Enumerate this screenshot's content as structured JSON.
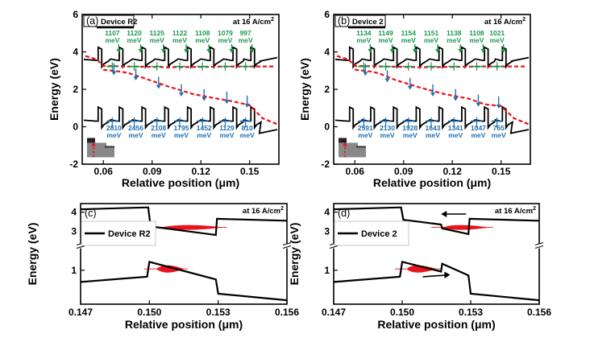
{
  "chart_data": [
    {
      "panel_label": "(a)",
      "type": "line",
      "legend": "Device R2",
      "condition": "at 16 A/cm",
      "condition_sup": "2",
      "xlabel": "Relative position (μm)",
      "ylabel": "Energy (eV)",
      "xlim": [
        0.047,
        0.168
      ],
      "ylim": [
        -2,
        6
      ],
      "xticks": [
        "0.06",
        "0.09",
        "0.12",
        "0.15"
      ],
      "yticks": [
        "-2",
        "0",
        "2",
        "4",
        "6"
      ],
      "barriers_x": [
        0.058,
        0.071,
        0.085,
        0.099,
        0.113,
        0.127,
        0.141,
        0.152
      ],
      "cb_edge": 3.6,
      "cb_barrier": 4.25,
      "vb_edge": 0.35,
      "vb_barrier": 1.05,
      "electron_quasi_fermi": [
        {
          "x": 0.049,
          "y": 3.78
        },
        {
          "x": 0.056,
          "y": 3.6
        },
        {
          "x": 0.06,
          "y": 3.25
        },
        {
          "x": 0.075,
          "y": 3.22
        },
        {
          "x": 0.09,
          "y": 3.2
        },
        {
          "x": 0.1,
          "y": 3.18
        },
        {
          "x": 0.12,
          "y": 3.2
        },
        {
          "x": 0.14,
          "y": 3.22
        },
        {
          "x": 0.165,
          "y": 3.22
        }
      ],
      "hole_quasi_fermi": [
        {
          "x": 0.06,
          "y": 3.05
        },
        {
          "x": 0.07,
          "y": 2.95
        },
        {
          "x": 0.075,
          "y": 2.88
        },
        {
          "x": 0.085,
          "y": 2.6
        },
        {
          "x": 0.1,
          "y": 2.15
        },
        {
          "x": 0.115,
          "y": 1.75
        },
        {
          "x": 0.13,
          "y": 1.5
        },
        {
          "x": 0.14,
          "y": 1.35
        },
        {
          "x": 0.15,
          "y": 1.15
        },
        {
          "x": 0.158,
          "y": 0.45
        },
        {
          "x": 0.168,
          "y": 0.1
        }
      ],
      "electron_annotations": [
        "1107",
        "1120",
        "1125",
        "1122",
        "1108",
        "1079",
        "997"
      ],
      "hole_annotations": [
        "2810",
        "2456",
        "2108",
        "1795",
        "1452",
        "1129",
        "810"
      ],
      "unit": "meV"
    },
    {
      "panel_label": "(b)",
      "type": "line",
      "legend": "Device 2",
      "condition": "at 16 A/cm",
      "condition_sup": "2",
      "xlabel": "Relative position (μm)",
      "ylabel": "Energy (eV)",
      "xlim": [
        0.047,
        0.168
      ],
      "ylim": [
        -2,
        6
      ],
      "xticks": [
        "0.06",
        "0.09",
        "0.12",
        "0.15"
      ],
      "yticks": [
        "-2",
        "0",
        "2",
        "4",
        "6"
      ],
      "barriers_x": [
        0.058,
        0.071,
        0.085,
        0.099,
        0.113,
        0.127,
        0.141,
        0.152
      ],
      "cb_edge": 3.6,
      "cb_barrier": 4.25,
      "vb_edge": 0.35,
      "vb_barrier": 1.05,
      "electron_quasi_fermi": [
        {
          "x": 0.049,
          "y": 3.78
        },
        {
          "x": 0.056,
          "y": 3.6
        },
        {
          "x": 0.06,
          "y": 3.25
        },
        {
          "x": 0.075,
          "y": 3.22
        },
        {
          "x": 0.09,
          "y": 3.2
        },
        {
          "x": 0.1,
          "y": 3.18
        },
        {
          "x": 0.12,
          "y": 3.2
        },
        {
          "x": 0.14,
          "y": 3.22
        },
        {
          "x": 0.165,
          "y": 3.22
        }
      ],
      "hole_quasi_fermi": [
        {
          "x": 0.06,
          "y": 3.05
        },
        {
          "x": 0.07,
          "y": 2.95
        },
        {
          "x": 0.075,
          "y": 2.85
        },
        {
          "x": 0.085,
          "y": 2.5
        },
        {
          "x": 0.1,
          "y": 2.1
        },
        {
          "x": 0.115,
          "y": 1.75
        },
        {
          "x": 0.13,
          "y": 1.5
        },
        {
          "x": 0.14,
          "y": 1.2
        },
        {
          "x": 0.15,
          "y": 1.1
        },
        {
          "x": 0.158,
          "y": 0.45
        },
        {
          "x": 0.168,
          "y": 0.1
        }
      ],
      "electron_annotations": [
        "1134",
        "1149",
        "1154",
        "1151",
        "1138",
        "1108",
        "1021"
      ],
      "hole_annotations": [
        "2591",
        "2130",
        "1928",
        "1643",
        "1341",
        "1047",
        "765"
      ],
      "unit": "meV"
    },
    {
      "panel_label": "(c)",
      "type": "line",
      "legend": "Device R2",
      "condition": "at 16 A/cm",
      "condition_sup": "2",
      "xlabel": "Relative position (μm)",
      "ylabel": "Energy (eV)",
      "xlim": [
        0.147,
        0.156
      ],
      "xticks": [
        "0.147",
        "0.150",
        "0.153",
        "0.156"
      ],
      "yticks_upper": [
        "3",
        "4"
      ],
      "yticks_lower": [
        "1"
      ],
      "conduction_band": [
        {
          "x": 0.147,
          "y": 4.15
        },
        {
          "x": 0.14995,
          "y": 4.25
        },
        {
          "x": 0.15005,
          "y": 3.25
        },
        {
          "x": 0.1529,
          "y": 2.8
        },
        {
          "x": 0.15295,
          "y": 3.65
        },
        {
          "x": 0.156,
          "y": 3.55
        }
      ],
      "valence_band": [
        {
          "x": 0.147,
          "y": 0.55
        },
        {
          "x": 0.1499,
          "y": 0.75
        },
        {
          "x": 0.15,
          "y": 1.32
        },
        {
          "x": 0.1529,
          "y": 0.65
        },
        {
          "x": 0.153,
          "y": 0.1
        },
        {
          "x": 0.156,
          "y": -0.15
        }
      ],
      "electron_distribution": {
        "x_from": 0.1505,
        "x_peak": 0.1515,
        "x_to": 0.1532,
        "y": 3.2
      },
      "hole_distribution": {
        "x_from": 0.1503,
        "x_peak": 0.1507,
        "x_to": 0.1515,
        "y": 1.05
      },
      "arrows": false
    },
    {
      "panel_label": "(d)",
      "type": "line",
      "legend": "Device 2",
      "condition": "at 16 A/cm",
      "condition_sup": "2",
      "xlabel": "Relative position (μm)",
      "ylabel": "Energy (eV)",
      "xlim": [
        0.147,
        0.156
      ],
      "xticks": [
        "0.147",
        "0.150",
        "0.153",
        "0.156"
      ],
      "yticks_upper": [
        "3",
        "4"
      ],
      "yticks_lower": [
        "1"
      ],
      "conduction_band": [
        {
          "x": 0.147,
          "y": 4.15
        },
        {
          "x": 0.14995,
          "y": 4.25
        },
        {
          "x": 0.15005,
          "y": 3.6
        },
        {
          "x": 0.1517,
          "y": 3.35
        },
        {
          "x": 0.15175,
          "y": 3.15
        },
        {
          "x": 0.1529,
          "y": 2.85
        },
        {
          "x": 0.15295,
          "y": 3.65
        },
        {
          "x": 0.156,
          "y": 3.55
        }
      ],
      "valence_band": [
        {
          "x": 0.147,
          "y": 0.55
        },
        {
          "x": 0.1499,
          "y": 0.75
        },
        {
          "x": 0.15,
          "y": 1.32
        },
        {
          "x": 0.1517,
          "y": 0.95
        },
        {
          "x": 0.15175,
          "y": 1.25
        },
        {
          "x": 0.1529,
          "y": 0.8
        },
        {
          "x": 0.153,
          "y": 0.1
        },
        {
          "x": 0.156,
          "y": -0.15
        }
      ],
      "electron_distribution": {
        "x_from": 0.1518,
        "x_peak": 0.1523,
        "x_to": 0.1538,
        "y": 3.2
      },
      "hole_distribution": {
        "x_from": 0.1502,
        "x_peak": 0.1505,
        "x_to": 0.1515,
        "y": 1.05
      },
      "arrows": true
    }
  ]
}
